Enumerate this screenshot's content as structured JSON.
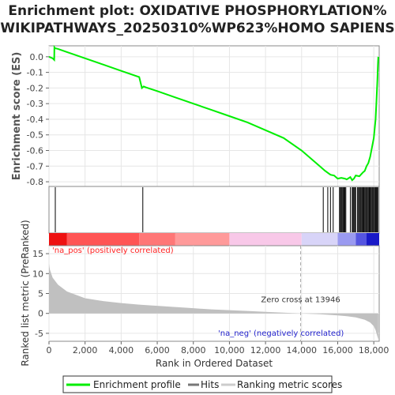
{
  "chart_data": {
    "type": "line",
    "title_line1": "Enrichment plot: OXIDATIVE PHOSPHORYLATION%",
    "title_line2": "WIKIPATHWAYS_20250310%WP623%HOMO SAPIENS",
    "es_panel": {
      "ylabel": "Enrichment score (ES)",
      "ylim": [
        -0.83,
        0.07
      ],
      "yticks": [
        0.0,
        -0.1,
        -0.2,
        -0.3,
        -0.4,
        -0.5,
        -0.6,
        -0.7,
        -0.8
      ],
      "ytick_labels": [
        "0.0",
        "-0.1",
        "-0.2",
        "-0.3",
        "-0.4",
        "-0.5",
        "-0.6",
        "-0.7",
        "-0.8"
      ],
      "line_color": "#00ee00",
      "series": [
        {
          "x": [
            0,
            200,
            290,
            300,
            330,
            500,
            1000,
            2000,
            3000,
            4000,
            5000,
            5150,
            5250,
            5350,
            6000,
            7000,
            8000,
            9000,
            10000,
            11000,
            12000,
            13000,
            14000,
            15000,
            15300,
            15600,
            15800,
            16000,
            16200,
            16400,
            16500,
            16700,
            16800,
            16900,
            17000,
            17200,
            17400,
            17500,
            17600,
            17700,
            17800,
            17900,
            18000,
            18100,
            18150,
            18200,
            18230,
            18250
          ],
          "y": [
            0.0,
            -0.01,
            -0.02,
            0.06,
            0.055,
            0.05,
            0.03,
            -0.01,
            -0.05,
            -0.09,
            -0.13,
            -0.2,
            -0.19,
            -0.195,
            -0.22,
            -0.26,
            -0.3,
            -0.34,
            -0.38,
            -0.42,
            -0.47,
            -0.52,
            -0.6,
            -0.7,
            -0.73,
            -0.755,
            -0.76,
            -0.78,
            -0.775,
            -0.78,
            -0.785,
            -0.77,
            -0.79,
            -0.78,
            -0.76,
            -0.765,
            -0.74,
            -0.73,
            -0.7,
            -0.68,
            -0.64,
            -0.58,
            -0.52,
            -0.4,
            -0.28,
            -0.15,
            -0.05,
            0.0
          ]
        }
      ]
    },
    "hits_panel": {
      "hit_positions": [
        350,
        5200,
        15200,
        15450,
        15600,
        15750,
        16100,
        16150,
        16200,
        16250,
        16300,
        16350,
        16400,
        16450,
        16700,
        16800,
        16850,
        16900,
        16950,
        17000,
        17100,
        17150,
        17200,
        17250,
        17300,
        17350,
        17400,
        17450,
        17500,
        17550,
        17600,
        17650,
        17700,
        17750,
        17800,
        17850,
        17900,
        17950,
        18000,
        18050,
        18100,
        18150,
        18200,
        18230
      ]
    },
    "rank_panel": {
      "ylabel": "Ranked list metric (PreRanked)",
      "ylim": [
        -7,
        17
      ],
      "yticks": [
        15,
        10,
        5,
        0,
        -5
      ],
      "ytick_labels": [
        "15",
        "10",
        "5",
        "0",
        "-5"
      ],
      "metric_curve": {
        "x": [
          0,
          50,
          200,
          500,
          1000,
          2000,
          3000,
          4000,
          5000,
          6000,
          7000,
          8000,
          9000,
          10000,
          11000,
          12000,
          13000,
          13946,
          15000,
          16000,
          16500,
          17000,
          17500,
          17800,
          18000,
          18100,
          18200,
          18250
        ],
        "y": [
          12.5,
          11.0,
          9.0,
          7.2,
          5.5,
          3.8,
          3.1,
          2.6,
          2.2,
          1.9,
          1.6,
          1.3,
          1.0,
          0.8,
          0.6,
          0.4,
          0.2,
          0.0,
          -0.2,
          -0.5,
          -0.7,
          -1.0,
          -1.6,
          -2.3,
          -3.2,
          -4.2,
          -5.8,
          -6.5
        ]
      },
      "zero_cross_label": "Zero cross at 13946",
      "zero_cross_x": 13946,
      "pos_label": "'na_pos' (positively correlated)",
      "neg_label": "'na_neg' (negatively correlated)",
      "pos_color": "#ff2222",
      "neg_color": "#2222cc",
      "fill_color": "#c0c0c0"
    },
    "xaxis": {
      "label": "Rank in Ordered Dataset",
      "xlim": [
        0,
        18300
      ],
      "ticks": [
        0,
        2000,
        4000,
        6000,
        8000,
        10000,
        12000,
        14000,
        16000,
        18000
      ],
      "tick_labels": [
        "0",
        "2,000",
        "4,000",
        "6,000",
        "8,000",
        "10,000",
        "12,000",
        "14,000",
        "16,000",
        "18,000"
      ]
    },
    "heatbar": {
      "segments": [
        {
          "from": 0,
          "to": 1000,
          "color": "#ee1111"
        },
        {
          "from": 1000,
          "to": 5000,
          "color": "#ff5555"
        },
        {
          "from": 5000,
          "to": 7000,
          "color": "#ff7777"
        },
        {
          "from": 7000,
          "to": 10000,
          "color": "#ff9a9a"
        },
        {
          "from": 10000,
          "to": 14000,
          "color": "#f8c8e8"
        },
        {
          "from": 14000,
          "to": 16000,
          "color": "#d8d4f8"
        },
        {
          "from": 16000,
          "to": 17000,
          "color": "#9a9af0"
        },
        {
          "from": 17000,
          "to": 17600,
          "color": "#5555e0"
        },
        {
          "from": 17600,
          "to": 18300,
          "color": "#1a1ac8"
        }
      ]
    },
    "legend": {
      "items": [
        {
          "label": "Enrichment profile",
          "color": "#00ee00"
        },
        {
          "label": "Hits",
          "color": "#777777"
        },
        {
          "label": "Ranking metric scores",
          "color": "#cccccc"
        }
      ]
    }
  }
}
